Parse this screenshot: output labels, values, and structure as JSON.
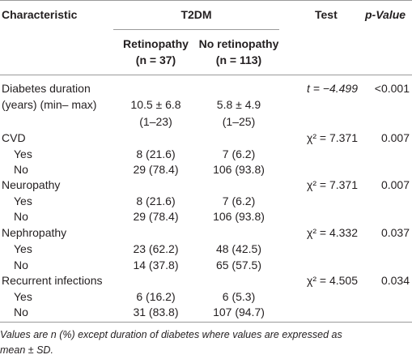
{
  "header": {
    "characteristic": "Characteristic",
    "group": "T2DM",
    "test": "Test",
    "pvalue": "p-Value",
    "col1_name": "Retinopathy",
    "col1_n": "(n = 37)",
    "col2_name": "No retinopathy",
    "col2_n": "(n = 113)"
  },
  "rows": {
    "duration": {
      "label1": "Diabetes duration",
      "label2": "(years) (min– max)",
      "ret": "10.5 ± 6.8",
      "ret_range": "(1–23)",
      "noret": "5.8 ± 4.9",
      "noret_range": "(1–25)",
      "test": "t = −4.499",
      "p": "<0.001"
    },
    "cvd": {
      "label": "CVD",
      "test": "χ² = 7.371",
      "p": "0.007",
      "yes": {
        "label": "Yes",
        "ret": "8 (21.6)",
        "noret": "7 (6.2)"
      },
      "no": {
        "label": "No",
        "ret": "29 (78.4)",
        "noret": "106 (93.8)"
      }
    },
    "neuro": {
      "label": "Neuropathy",
      "test": "χ² = 7.371",
      "p": "0.007",
      "yes": {
        "label": "Yes",
        "ret": "8 (21.6)",
        "noret": "7 (6.2)"
      },
      "no": {
        "label": "No",
        "ret": "29 (78.4)",
        "noret": "106 (93.8)"
      }
    },
    "nephro": {
      "label": "Nephropathy",
      "test": "χ² = 4.332",
      "p": "0.037",
      "yes": {
        "label": "Yes",
        "ret": "23 (62.2)",
        "noret": "48 (42.5)"
      },
      "no": {
        "label": "No",
        "ret": "14 (37.8)",
        "noret": "65 (57.5)"
      }
    },
    "infect": {
      "label": "Recurrent infections",
      "test": "χ² = 4.505",
      "p": "0.034",
      "yes": {
        "label": "Yes",
        "ret": "6 (16.2)",
        "noret": "6 (5.3)"
      },
      "no": {
        "label": "No",
        "ret": "31 (83.8)",
        "noret": "107 (94.7)"
      }
    }
  },
  "footnote": {
    "line1": "Values are n (%) except duration of diabetes where values are expressed as",
    "line2": "mean ± SD."
  }
}
